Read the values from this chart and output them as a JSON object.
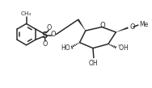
{
  "background": "#ffffff",
  "line_color": "#2a2a2a",
  "line_width": 1.1,
  "figsize": [
    1.88,
    1.09
  ],
  "dpi": 100,
  "xlim": [
    0,
    10
  ],
  "ylim": [
    0,
    5.8
  ]
}
